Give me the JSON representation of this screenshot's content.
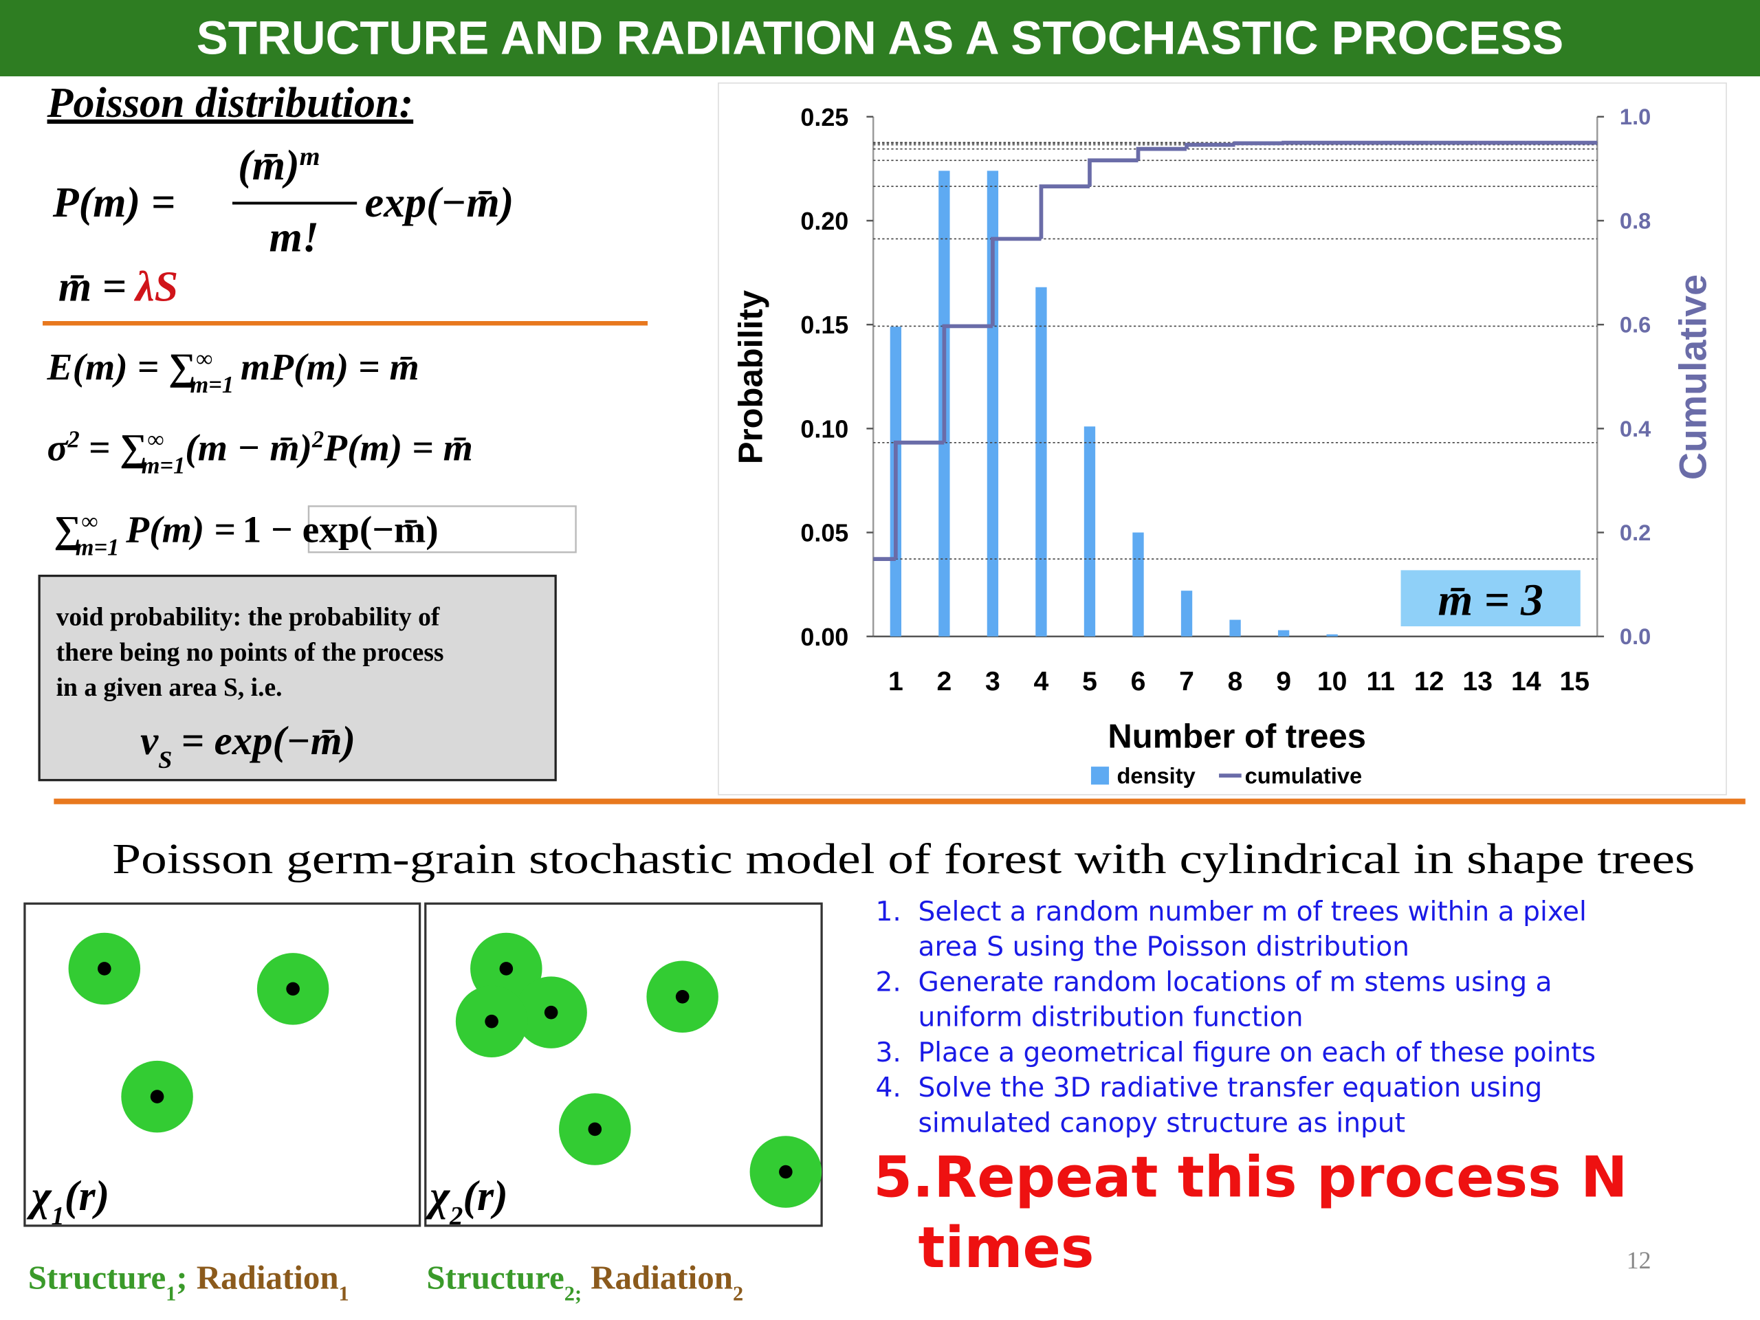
{
  "header": {
    "title": "STRUCTURE AND RADIATION AS A STOCHASTIC PROCESS"
  },
  "poisson": {
    "heading": "Poisson distribution:",
    "pmf": {
      "lhs": "P(m) =",
      "numerator": "(m̄)",
      "numerator_sup": "m",
      "denominator": "m!",
      "rhs": "exp(−m̄)"
    },
    "mean": {
      "lhs": "m̄ =",
      "rhs": "λS"
    },
    "expectation": {
      "pre": "E(m) = ∑",
      "sup": "∞",
      "sub": "m=1",
      "post": "mP(m) = m̄"
    },
    "variance": {
      "pre": "σ",
      "pre_sup": "2",
      "op": "= ∑",
      "sup": "∞",
      "sub": "m=1",
      "post": "(m − m̄)",
      "post_sup": "2",
      "tail": "P(m) = m̄"
    },
    "sum": {
      "pre": "∑",
      "sup": "∞",
      "sub": "m=1",
      "post": "P(m) =",
      "boxed": "1 − exp(−m̄)"
    }
  },
  "void": {
    "lines": [
      "void probability: the probability of",
      "there being no points of the process",
      "in a given area S, i.e."
    ],
    "formula": {
      "pre": "v",
      "sub": "S",
      "post": "= exp(−m̄)"
    }
  },
  "chart_data": {
    "type": "bar",
    "categories": [
      "1",
      "2",
      "3",
      "4",
      "5",
      "6",
      "7",
      "8",
      "9",
      "10",
      "11",
      "12",
      "13",
      "14",
      "15"
    ],
    "series": [
      {
        "name": "density",
        "type": "bar",
        "color": "#5eaaf2",
        "values": [
          0.149,
          0.224,
          0.224,
          0.168,
          0.101,
          0.05,
          0.022,
          0.008,
          0.003,
          0.001,
          0,
          0,
          0,
          0,
          0
        ]
      },
      {
        "name": "cumulative",
        "type": "line",
        "axis": "y2",
        "color": "#6a6ca8",
        "values": [
          0.149,
          0.373,
          0.597,
          0.765,
          0.866,
          0.916,
          0.938,
          0.946,
          0.949,
          0.95,
          0.95,
          0.95,
          0.95,
          0.95,
          0.95
        ]
      }
    ],
    "ylim": [
      0,
      0.25
    ],
    "yticks": [
      {
        "value": 0,
        "label": "0.00"
      },
      {
        "value": 0.05,
        "label": "0.05"
      },
      {
        "value": 0.1,
        "label": "0.10"
      },
      {
        "value": 0.15,
        "label": "0.15"
      },
      {
        "value": 0.2,
        "label": "0.20"
      },
      {
        "value": 0.25,
        "label": "0.25"
      }
    ],
    "y2lim": [
      0,
      1
    ],
    "y2ticks": [
      {
        "value": 0,
        "label": "0.0"
      },
      {
        "value": 0.2,
        "label": "0.2"
      },
      {
        "value": 0.4,
        "label": "0.4"
      },
      {
        "value": 0.6,
        "label": "0.6"
      },
      {
        "value": 0.8,
        "label": "0.8"
      },
      {
        "value": 1,
        "label": "1.0"
      }
    ],
    "xlabel": "Number of trees",
    "ylabel": "Probability",
    "y2label": "Cumulative",
    "annotation": "m̄ = 3",
    "legend": "bottom"
  },
  "subtitle": "Poisson germ-grain stochastic model of forest with cylindrical in shape trees",
  "panels": [
    {
      "label": "χ",
      "label_sub": "1",
      "label_post": "(r)",
      "caption": {
        "structure": "Structure",
        "structure_sub": "1",
        "sep": ";",
        "radiation": "Radiation",
        "radiation_sub": "1"
      }
    },
    {
      "label": "χ",
      "label_sub": "2",
      "label_post": "(r)",
      "caption": {
        "structure": "Structure",
        "structure_sub": "2;",
        "radiation": "Radiation",
        "radiation_sub": "2"
      }
    }
  ],
  "steps": [
    {
      "number": "1.",
      "lines": [
        "Select a random number m of trees within a pixel",
        "area S using the Poisson distribution"
      ]
    },
    {
      "number": "2.",
      "lines": [
        "Generate random locations of m stems using a",
        "uniform distribution function"
      ]
    },
    {
      "number": "3.",
      "lines": [
        "Place a geometrical figure on each of these points"
      ]
    },
    {
      "number": "4.",
      "lines": [
        "Solve the 3D radiative transfer equation using",
        "simulated canopy structure as input"
      ]
    }
  ],
  "final_step": {
    "number": "5.",
    "lines": [
      "Repeat this process N",
      "times"
    ]
  },
  "page_number": "12"
}
